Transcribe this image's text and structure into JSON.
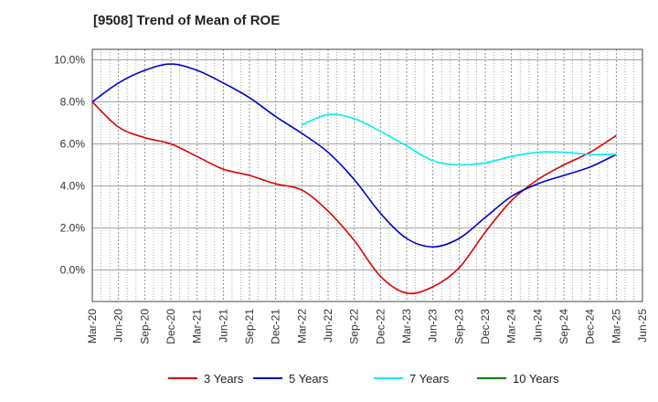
{
  "chart_data": {
    "type": "line",
    "title": "[9508]  Trend of Mean of ROE",
    "xlabel": "",
    "ylabel": "",
    "x_ticks": [
      "Mar-20",
      "Jun-20",
      "Sep-20",
      "Dec-20",
      "Mar-21",
      "Jun-21",
      "Sep-21",
      "Dec-21",
      "Mar-22",
      "Jun-22",
      "Sep-22",
      "Dec-22",
      "Mar-23",
      "Jun-23",
      "Sep-23",
      "Dec-23",
      "Mar-24",
      "Jun-24",
      "Sep-24",
      "Dec-24",
      "Mar-25",
      "Jun-25"
    ],
    "y_ticks": [
      "10.0%",
      "8.0%",
      "6.0%",
      "4.0%",
      "2.0%",
      "0.0%"
    ],
    "y_tick_values": [
      10,
      8,
      6,
      4,
      2,
      0
    ],
    "ylim": [
      -1.5,
      10.5
    ],
    "grid": true,
    "legend_position": "bottom",
    "series": [
      {
        "name": "3 Years",
        "color": "#dd0000",
        "start_index": 0,
        "values": [
          8.0,
          6.8,
          6.3,
          6.0,
          5.4,
          4.8,
          4.5,
          4.1,
          3.8,
          2.8,
          1.4,
          -0.3,
          -1.1,
          -0.8,
          0.1,
          1.8,
          3.3,
          4.3,
          5.0,
          5.6,
          6.4
        ]
      },
      {
        "name": "5 Years",
        "color": "#0000cc",
        "start_index": 0,
        "values": [
          8.0,
          8.9,
          9.5,
          9.8,
          9.5,
          8.9,
          8.2,
          7.3,
          6.5,
          5.6,
          4.3,
          2.7,
          1.5,
          1.1,
          1.5,
          2.5,
          3.5,
          4.1,
          4.5,
          4.9,
          5.5
        ]
      },
      {
        "name": "7 Years",
        "color": "#00eeee",
        "start_index": 8,
        "values": [
          6.9,
          7.4,
          7.2,
          6.6,
          5.9,
          5.2,
          5.0,
          5.1,
          5.4,
          5.6,
          5.6,
          5.5,
          5.5
        ]
      },
      {
        "name": "10 Years",
        "color": "#008000",
        "start_index": 0,
        "values": []
      }
    ]
  }
}
